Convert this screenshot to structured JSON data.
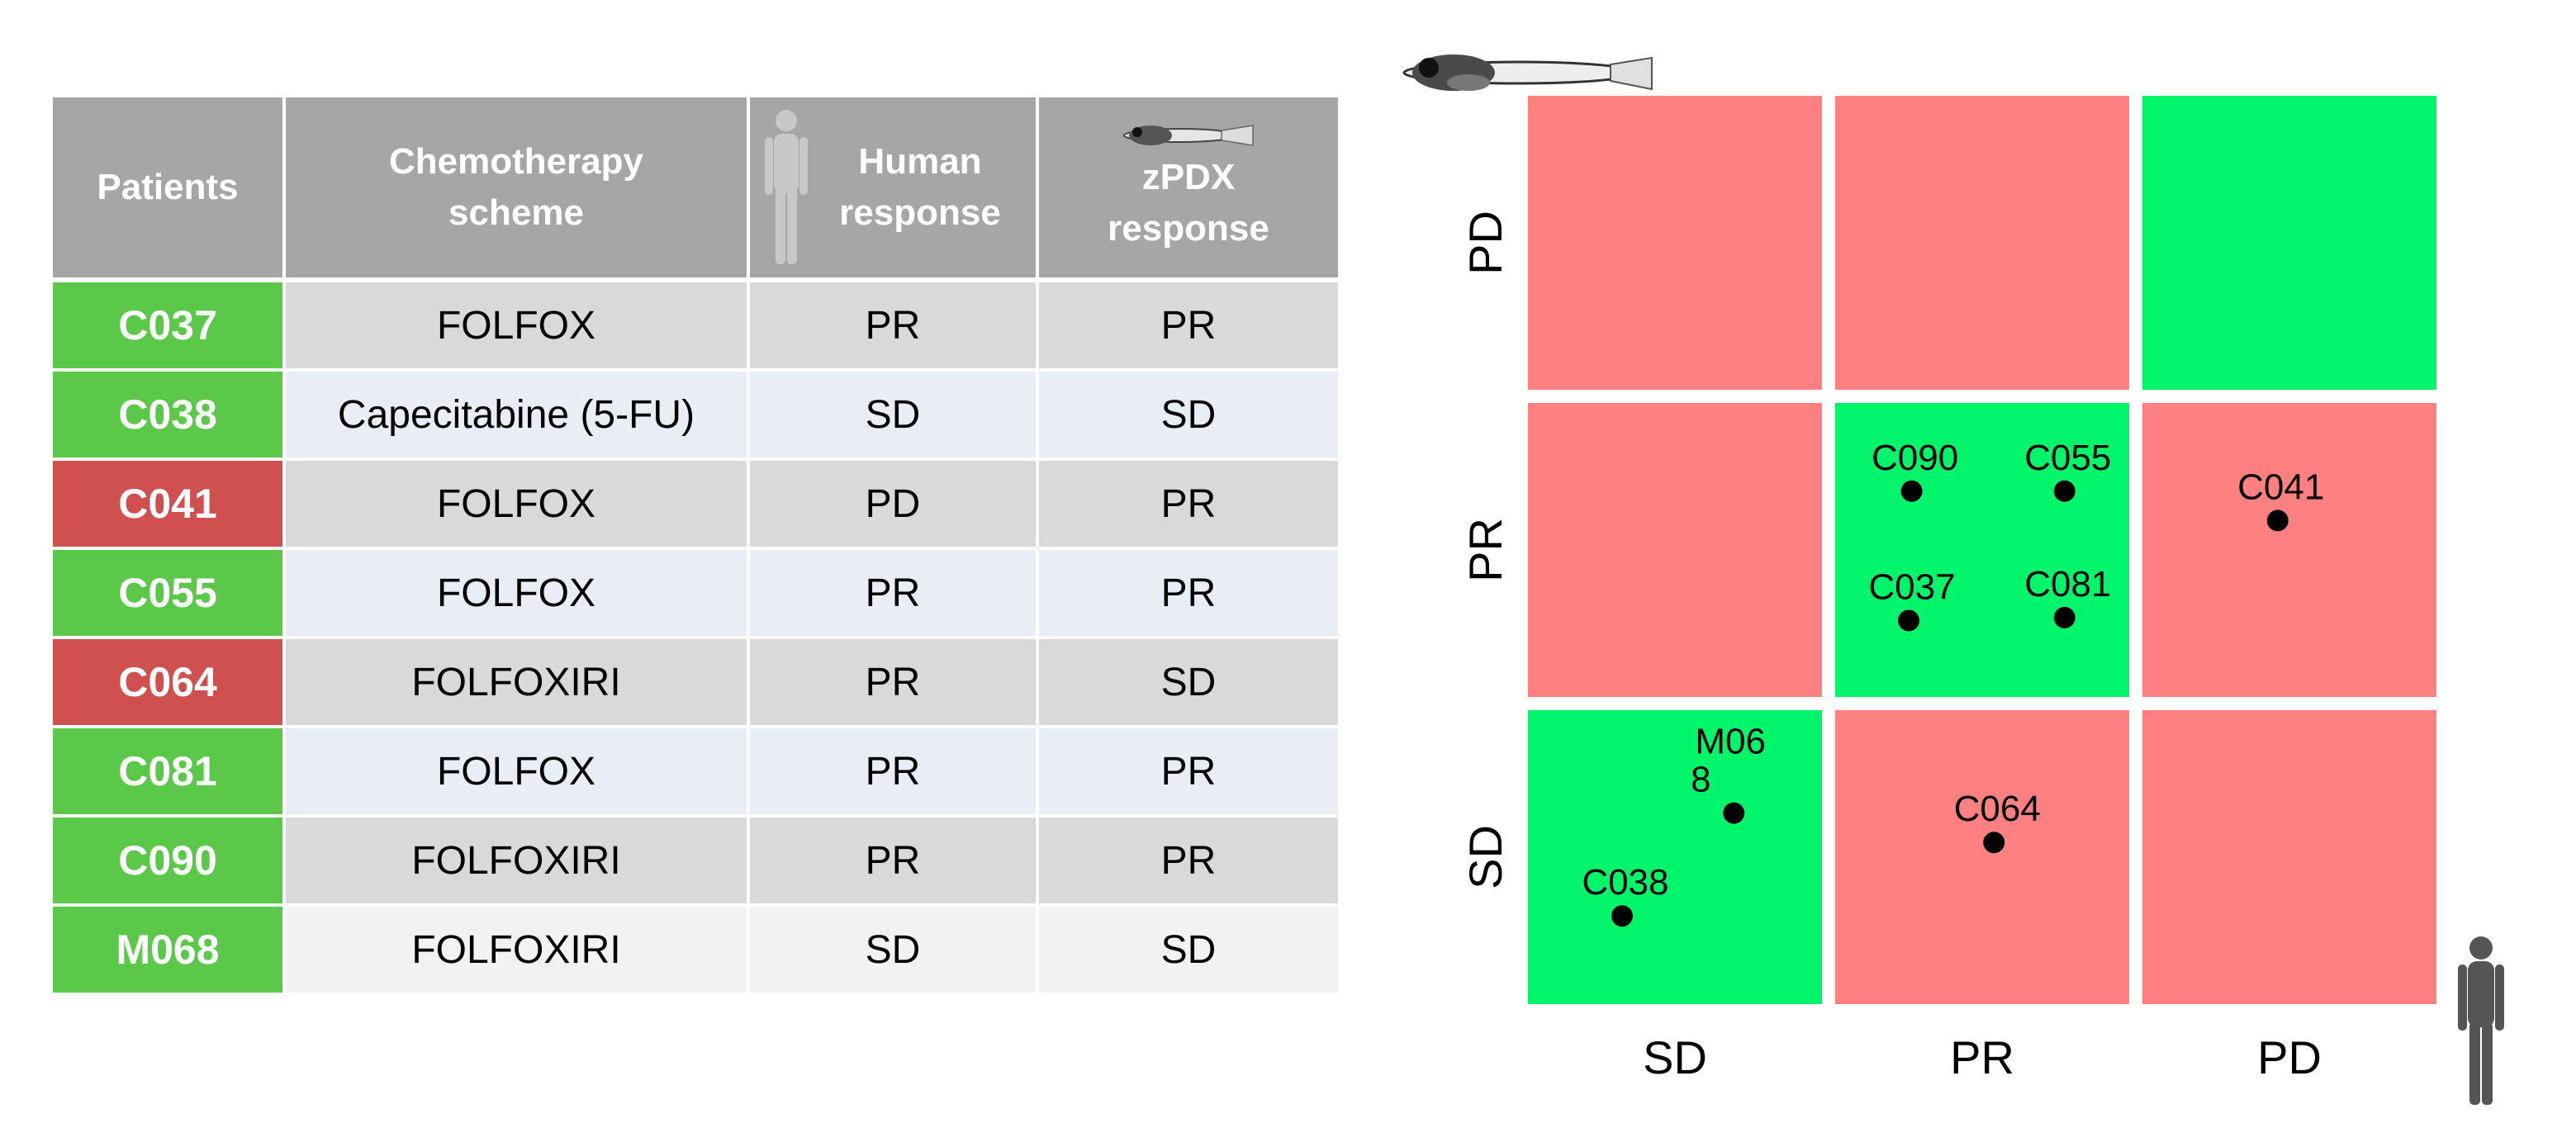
{
  "table": {
    "headers": [
      {
        "label": "Patients"
      },
      {
        "label": "Chemotherapy\nscheme"
      },
      {
        "label": "Human\nresponse",
        "icon": "human-silhouette-icon"
      },
      {
        "label": "zPDX\nresponse",
        "icon": "zebrafish-icon"
      }
    ],
    "rows": [
      {
        "patient": "C037",
        "scheme": "FOLFOX",
        "human": "PR",
        "zpdx": "PR",
        "color": "#5bc84a",
        "bg": "#d9d9d9"
      },
      {
        "patient": "C038",
        "scheme": "Capecitabine (5-FU)",
        "human": "SD",
        "zpdx": "SD",
        "color": "#5bc84a",
        "bg": "#e9edf6"
      },
      {
        "patient": "C041",
        "scheme": "FOLFOX",
        "human": "PD",
        "zpdx": "PR",
        "color": "#d05050",
        "bg": "#d9d9d9"
      },
      {
        "patient": "C055",
        "scheme": "FOLFOX",
        "human": "PR",
        "zpdx": "PR",
        "color": "#5bc84a",
        "bg": "#e9edf6"
      },
      {
        "patient": "C064",
        "scheme": "FOLFOXIRI",
        "human": "PR",
        "zpdx": "SD",
        "color": "#d05050",
        "bg": "#d9d9d9"
      },
      {
        "patient": "C081",
        "scheme": "FOLFOX",
        "human": "PR",
        "zpdx": "PR",
        "color": "#5bc84a",
        "bg": "#e9edf6"
      },
      {
        "patient": "C090",
        "scheme": "FOLFOXIRI",
        "human": "PR",
        "zpdx": "PR",
        "color": "#5bc84a",
        "bg": "#d9d9d9"
      },
      {
        "patient": "M068",
        "scheme": "FOLFOXIRI",
        "human": "SD",
        "zpdx": "SD",
        "color": "#5bc84a",
        "bg": "#f2f2f2"
      }
    ]
  },
  "chart_data": {
    "type": "heatmap",
    "x_categories": [
      "SD",
      "PR",
      "PD"
    ],
    "y_categories": [
      "SD",
      "PR",
      "PD"
    ],
    "x_icon": "human-silhouette-icon",
    "y_icon": "zebrafish-icon",
    "colors": {
      "match": "#00f56a",
      "mismatch": "#ff8080"
    },
    "cells": [
      {
        "x": "SD",
        "y": "PD",
        "match": false
      },
      {
        "x": "PR",
        "y": "PD",
        "match": false
      },
      {
        "x": "PD",
        "y": "PD",
        "match": true
      },
      {
        "x": "SD",
        "y": "PR",
        "match": false
      },
      {
        "x": "PR",
        "y": "PR",
        "match": true
      },
      {
        "x": "PD",
        "y": "PR",
        "match": false
      },
      {
        "x": "SD",
        "y": "SD",
        "match": true
      },
      {
        "x": "PR",
        "y": "SD",
        "match": false
      },
      {
        "x": "PD",
        "y": "SD",
        "match": false
      }
    ],
    "points": [
      {
        "label": "C090",
        "x": "PR",
        "y": "PR",
        "fx": 0.26,
        "fy": 0.3
      },
      {
        "label": "C055",
        "x": "PR",
        "y": "PR",
        "fx": 0.78,
        "fy": 0.3
      },
      {
        "label": "C037",
        "x": "PR",
        "y": "PR",
        "fx": 0.25,
        "fy": 0.74
      },
      {
        "label": "C081",
        "x": "PR",
        "y": "PR",
        "fx": 0.78,
        "fy": 0.73
      },
      {
        "label": "C041",
        "x": "PD",
        "y": "PR",
        "fx": 0.46,
        "fy": 0.4
      },
      {
        "label": "M06\n8",
        "x": "SD",
        "y": "SD",
        "fx": 0.7,
        "fy": 0.35
      },
      {
        "label": "C064",
        "x": "PR",
        "y": "SD",
        "fx": 0.54,
        "fy": 0.45
      },
      {
        "label": "C038",
        "x": "SD",
        "y": "SD",
        "fx": 0.32,
        "fy": 0.7
      }
    ]
  }
}
